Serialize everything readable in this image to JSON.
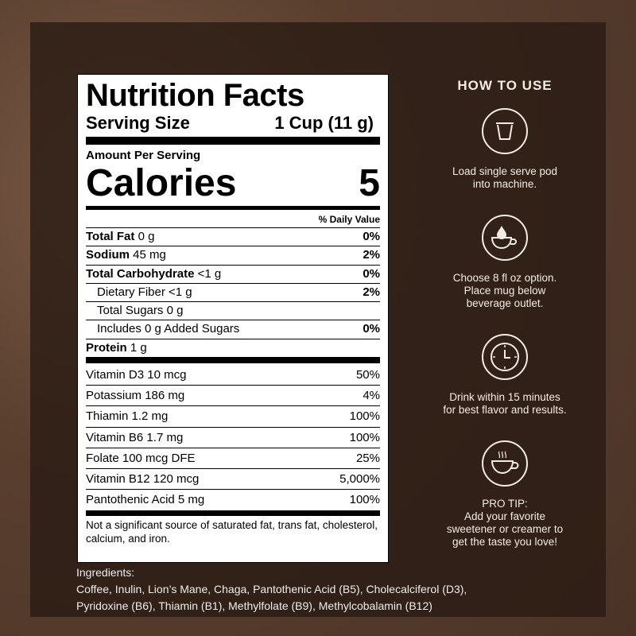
{
  "label": {
    "title": "Nutrition Facts",
    "serving_label": "Serving Size",
    "serving_value": "1 Cup (11 g)",
    "amount_per_serving": "Amount Per Serving",
    "calories_label": "Calories",
    "calories_value": "5",
    "dv_header": "% Daily Value",
    "nutrients": [
      {
        "name": "Total Fat",
        "amount": "0 g",
        "dv": "0%",
        "bold": true,
        "indent": false
      },
      {
        "name": "Sodium",
        "amount": "45 mg",
        "dv": "2%",
        "bold": true,
        "indent": false
      },
      {
        "name": "Total Carbohydrate",
        "amount": "<1 g",
        "dv": "0%",
        "bold": true,
        "indent": false
      },
      {
        "name": "Dietary Fiber",
        "amount": "<1 g",
        "dv": "2%",
        "bold": false,
        "indent": true
      },
      {
        "name": "Total Sugars",
        "amount": "0 g",
        "dv": "",
        "bold": false,
        "indent": true
      },
      {
        "name": "Includes 0 g Added Sugars",
        "amount": "",
        "dv": "0%",
        "bold": false,
        "indent": true
      },
      {
        "name": "Protein",
        "amount": "1 g",
        "dv": "",
        "bold": true,
        "indent": false
      }
    ],
    "vitamins": [
      {
        "name": "Vitamin D3 10 mcg",
        "dv": "50%"
      },
      {
        "name": "Potassium 186 mg",
        "dv": "4%"
      },
      {
        "name": "Thiamin 1.2 mg",
        "dv": "100%"
      },
      {
        "name": "Vitamin B6 1.7 mg",
        "dv": "100%"
      },
      {
        "name": "Folate 100 mcg DFE",
        "dv": "25%"
      },
      {
        "name": "Vitamin B12 120 mcg",
        "dv": "5,000%"
      },
      {
        "name": "Pantothenic Acid 5 mg",
        "dv": "100%"
      }
    ],
    "footnote": "Not a significant source of saturated fat, trans fat, cholesterol, calcium, and iron."
  },
  "ingredients": {
    "label": "Ingredients:",
    "line1": "Coffee, Inulin, Lion’s Mane, Chaga, Pantothenic Acid (B5), Cholecalciferol (D3),",
    "line2": "Pyridoxine (B6), Thiamin (B1), Methylfolate (B9), Methylcobalamin (B12)"
  },
  "how_to_use": {
    "title": "HOW TO USE",
    "steps": [
      {
        "icon": "pod-icon",
        "lines": [
          "Load single serve pod",
          "into machine."
        ]
      },
      {
        "icon": "mug-drop-icon",
        "lines": [
          "Choose 8 fl oz option.",
          "Place mug below",
          "beverage outlet."
        ]
      },
      {
        "icon": "clock-icon",
        "lines": [
          "Drink within 15 minutes",
          "for best flavor and results."
        ]
      },
      {
        "icon": "hot-cup-icon",
        "lines": [
          "PRO TIP:",
          "Add your favorite",
          "sweetener or creamer to",
          "get the taste you love!"
        ]
      }
    ]
  }
}
